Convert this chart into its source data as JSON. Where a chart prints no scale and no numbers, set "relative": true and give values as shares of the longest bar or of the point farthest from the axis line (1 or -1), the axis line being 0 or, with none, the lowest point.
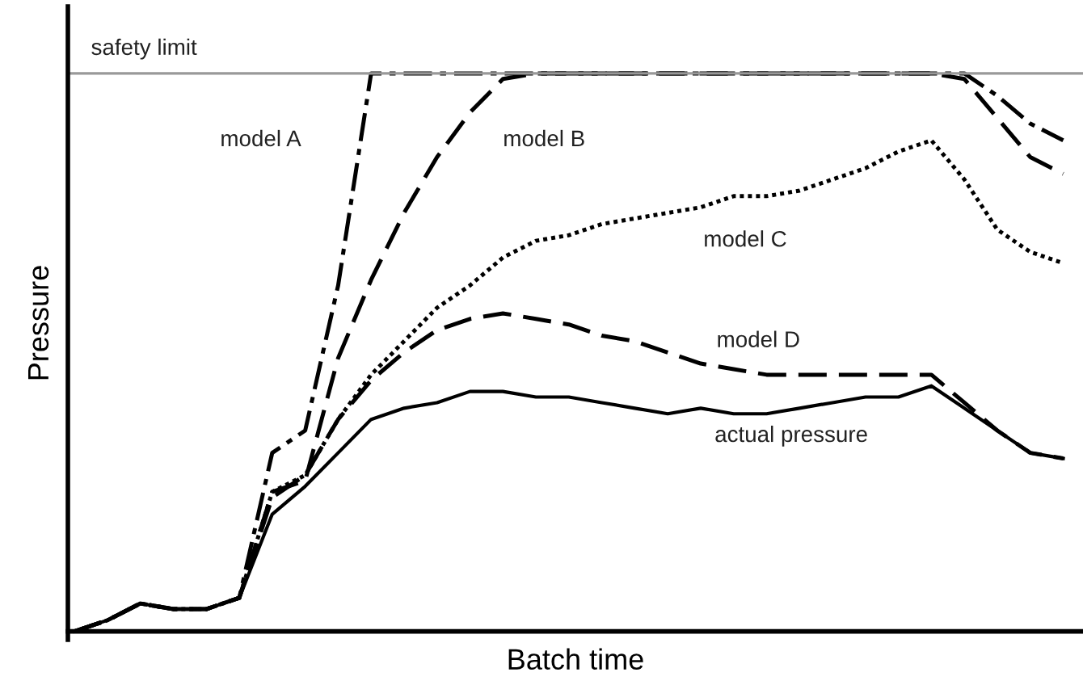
{
  "chart_data": {
    "type": "line",
    "relative": true,
    "xlabel": "Batch time",
    "ylabel": "Pressure",
    "grid": false,
    "legend": false,
    "marker": "none",
    "categories": [
      null,
      null,
      null,
      null,
      null,
      null,
      null,
      null,
      null,
      null,
      null,
      null,
      null,
      null,
      null,
      null,
      null,
      null,
      null,
      null,
      null,
      null,
      null,
      null,
      null,
      null,
      null,
      null,
      null,
      null,
      null
    ],
    "series": [
      {
        "name": "actual pressure",
        "color": "#000000",
        "line_style": "solid",
        "values": [
          0.0,
          0.02,
          0.05,
          0.04,
          0.04,
          0.06,
          0.21,
          0.26,
          0.32,
          0.38,
          0.4,
          0.41,
          0.43,
          0.43,
          0.42,
          0.42,
          0.41,
          0.4,
          0.39,
          0.4,
          0.39,
          0.39,
          0.4,
          0.41,
          0.42,
          0.42,
          0.44,
          0.4,
          0.36,
          0.32,
          0.31
        ]
      },
      {
        "name": "model D",
        "color": "#000000",
        "line_style": "dashed",
        "values": [
          0.0,
          0.02,
          0.05,
          0.04,
          0.04,
          0.06,
          0.24,
          0.28,
          0.38,
          0.45,
          0.5,
          0.54,
          0.56,
          0.57,
          0.56,
          0.55,
          0.53,
          0.52,
          0.5,
          0.48,
          0.47,
          0.46,
          0.46,
          0.46,
          0.46,
          0.46,
          0.46,
          0.41,
          0.36,
          0.32,
          0.31
        ]
      },
      {
        "name": "model C",
        "color": "#000000",
        "line_style": "dotted",
        "values": [
          0.0,
          0.02,
          0.05,
          0.04,
          0.04,
          0.06,
          0.25,
          0.28,
          0.38,
          0.46,
          0.52,
          0.58,
          0.62,
          0.67,
          0.7,
          0.71,
          0.73,
          0.74,
          0.75,
          0.76,
          0.78,
          0.78,
          0.79,
          0.81,
          0.83,
          0.86,
          0.88,
          0.81,
          0.72,
          0.68,
          0.66
        ]
      },
      {
        "name": "model B",
        "color": "#000000",
        "line_style": "dashed",
        "values": [
          0.0,
          0.02,
          0.05,
          0.04,
          0.04,
          0.06,
          0.25,
          0.27,
          0.49,
          0.63,
          0.75,
          0.85,
          0.93,
          0.99,
          1.0,
          1.0,
          1.0,
          1.0,
          1.0,
          1.0,
          1.0,
          1.0,
          1.0,
          1.0,
          1.0,
          1.0,
          1.0,
          0.99,
          0.92,
          0.85,
          0.82
        ]
      },
      {
        "name": "model A",
        "color": "#000000",
        "line_style": "dashdot",
        "values": [
          0.0,
          0.02,
          0.05,
          0.04,
          0.04,
          0.06,
          0.32,
          0.36,
          0.62,
          1.0,
          1.0,
          1.0,
          1.0,
          1.0,
          1.0,
          1.0,
          1.0,
          1.0,
          1.0,
          1.0,
          1.0,
          1.0,
          1.0,
          1.0,
          1.0,
          1.0,
          1.0,
          1.0,
          0.96,
          0.91,
          0.88
        ]
      }
    ],
    "ref_lines": [
      {
        "axis": "y",
        "value": 1.0,
        "label": "safety limit",
        "color": "#999999",
        "line_style": "solid"
      }
    ]
  }
}
